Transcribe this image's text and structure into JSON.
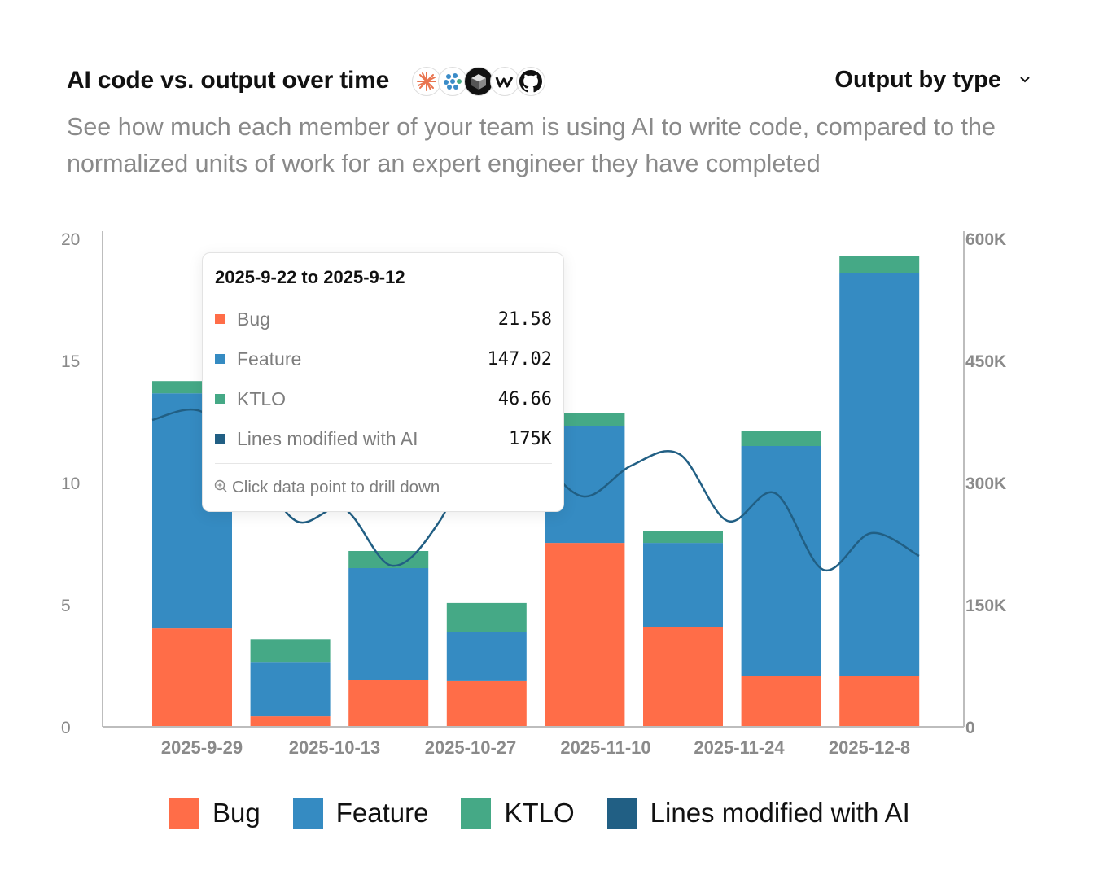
{
  "header": {
    "title": "AI code vs. output over time",
    "tool_icons": [
      "claude-icon",
      "cluster-icon",
      "cursor-icon",
      "windsurf-icon",
      "github-icon"
    ],
    "selector_label": "Output by type",
    "subtitle": "See how much each member of your team is using AI to write code, compared to the normalized units of work for an expert engineer they have completed"
  },
  "colors": {
    "bug": "#ff6d48",
    "feature": "#358bc2",
    "ktlo": "#45a986",
    "lines": "#215f84",
    "axis": "#bdbdbd",
    "tick_text": "#8a8a8a"
  },
  "tooltip": {
    "title": "2025-9-22 to 2025-9-12",
    "rows": [
      {
        "label": "Bug",
        "value": "21.58",
        "color": "#ff6d48"
      },
      {
        "label": "Feature",
        "value": "147.02",
        "color": "#358bc2"
      },
      {
        "label": "KTLO",
        "value": "46.66",
        "color": "#45a986"
      },
      {
        "label": "Lines modified with AI",
        "value": "175K",
        "color": "#215f84"
      }
    ],
    "footer": "Click data point to drill down"
  },
  "legend": [
    {
      "label": "Bug",
      "color": "#ff6d48"
    },
    {
      "label": "Feature",
      "color": "#358bc2"
    },
    {
      "label": "KTLO",
      "color": "#45a986"
    },
    {
      "label": "Lines modified with AI",
      "color": "#215f84"
    }
  ],
  "chart_data": {
    "type": "bar",
    "stacked": true,
    "title": "AI code vs. output over time",
    "x_tick_labels": [
      "2025-9-29",
      "2025-10-13",
      "2025-10-27",
      "2025-11-10",
      "2025-11-24",
      "2025-12-8"
    ],
    "bar_count": 8,
    "y_left": {
      "min": 0,
      "max": 20,
      "ticks": [
        "0",
        "5",
        "10",
        "15",
        "20"
      ]
    },
    "y_right": {
      "min": 0,
      "max": 600000,
      "ticks": [
        "0",
        "150K",
        "300K",
        "450K",
        "600K"
      ]
    },
    "series": [
      {
        "name": "Bug",
        "values": [
          4.03,
          0.43,
          1.9,
          1.87,
          7.53,
          4.1,
          2.1,
          2.1
        ]
      },
      {
        "name": "Feature",
        "values": [
          9.63,
          2.23,
          4.6,
          2.03,
          4.8,
          3.43,
          9.4,
          16.47
        ]
      },
      {
        "name": "KTLO",
        "values": [
          0.5,
          0.93,
          0.7,
          1.17,
          0.53,
          0.5,
          0.63,
          0.73
        ]
      }
    ],
    "line_series": {
      "name": "Lines modified with AI",
      "axis": "right",
      "values": [
        377000,
        388000,
        333000,
        253000,
        268000,
        198000,
        253000,
        373000,
        333000,
        283000,
        321000,
        335000,
        253000,
        287000,
        193000,
        238000,
        210000
      ]
    },
    "grid": false,
    "legend_position": "bottom"
  }
}
